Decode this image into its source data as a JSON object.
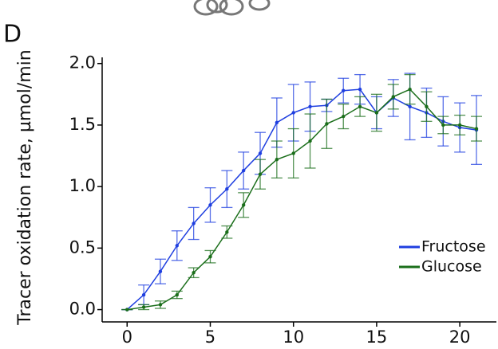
{
  "chart_data": {
    "type": "line",
    "panel_label": "D",
    "y_label": "Tracer oxidation rate,  µmol/min",
    "x": [
      0,
      1,
      2,
      3,
      4,
      5,
      6,
      7,
      8,
      9,
      10,
      11,
      12,
      13,
      14,
      15,
      16,
      17,
      18,
      19,
      20,
      21
    ],
    "series": [
      {
        "name": "Fructose",
        "color": "#1f3fe0",
        "values": [
          0,
          0.12,
          0.31,
          0.52,
          0.7,
          0.85,
          0.98,
          1.13,
          1.27,
          1.52,
          1.6,
          1.65,
          1.66,
          1.78,
          1.79,
          1.6,
          1.72,
          1.65,
          1.6,
          1.53,
          1.48,
          1.46
        ],
        "errors": [
          0,
          0.08,
          0.1,
          0.12,
          0.13,
          0.14,
          0.15,
          0.15,
          0.17,
          0.2,
          0.23,
          0.2,
          0.05,
          0.1,
          0.12,
          0.13,
          0.15,
          0.27,
          0.2,
          0.2,
          0.2,
          0.28
        ]
      },
      {
        "name": "Glucose",
        "color": "#1a6e1a",
        "values": [
          0,
          0.02,
          0.04,
          0.12,
          0.3,
          0.43,
          0.63,
          0.85,
          1.1,
          1.22,
          1.27,
          1.37,
          1.51,
          1.57,
          1.65,
          1.6,
          1.73,
          1.79,
          1.65,
          1.5,
          1.5,
          1.47
        ],
        "errors": [
          0,
          0.02,
          0.03,
          0.03,
          0.04,
          0.05,
          0.05,
          0.1,
          0.12,
          0.15,
          0.2,
          0.22,
          0.2,
          0.1,
          0.08,
          0.15,
          0.1,
          0.12,
          0.12,
          0.07,
          0.08,
          0.1
        ]
      }
    ],
    "xlim": [
      -1.5,
      22.2
    ],
    "ylim": [
      -0.1,
      2.05
    ],
    "xticks": [
      0,
      5,
      10,
      15,
      20
    ],
    "yticks": [
      {
        "value": 0,
        "label": "0.0"
      },
      0.5,
      {
        "value": 1,
        "label": "1.0"
      },
      1.5,
      {
        "value": 2,
        "label": "2.0"
      }
    ]
  }
}
